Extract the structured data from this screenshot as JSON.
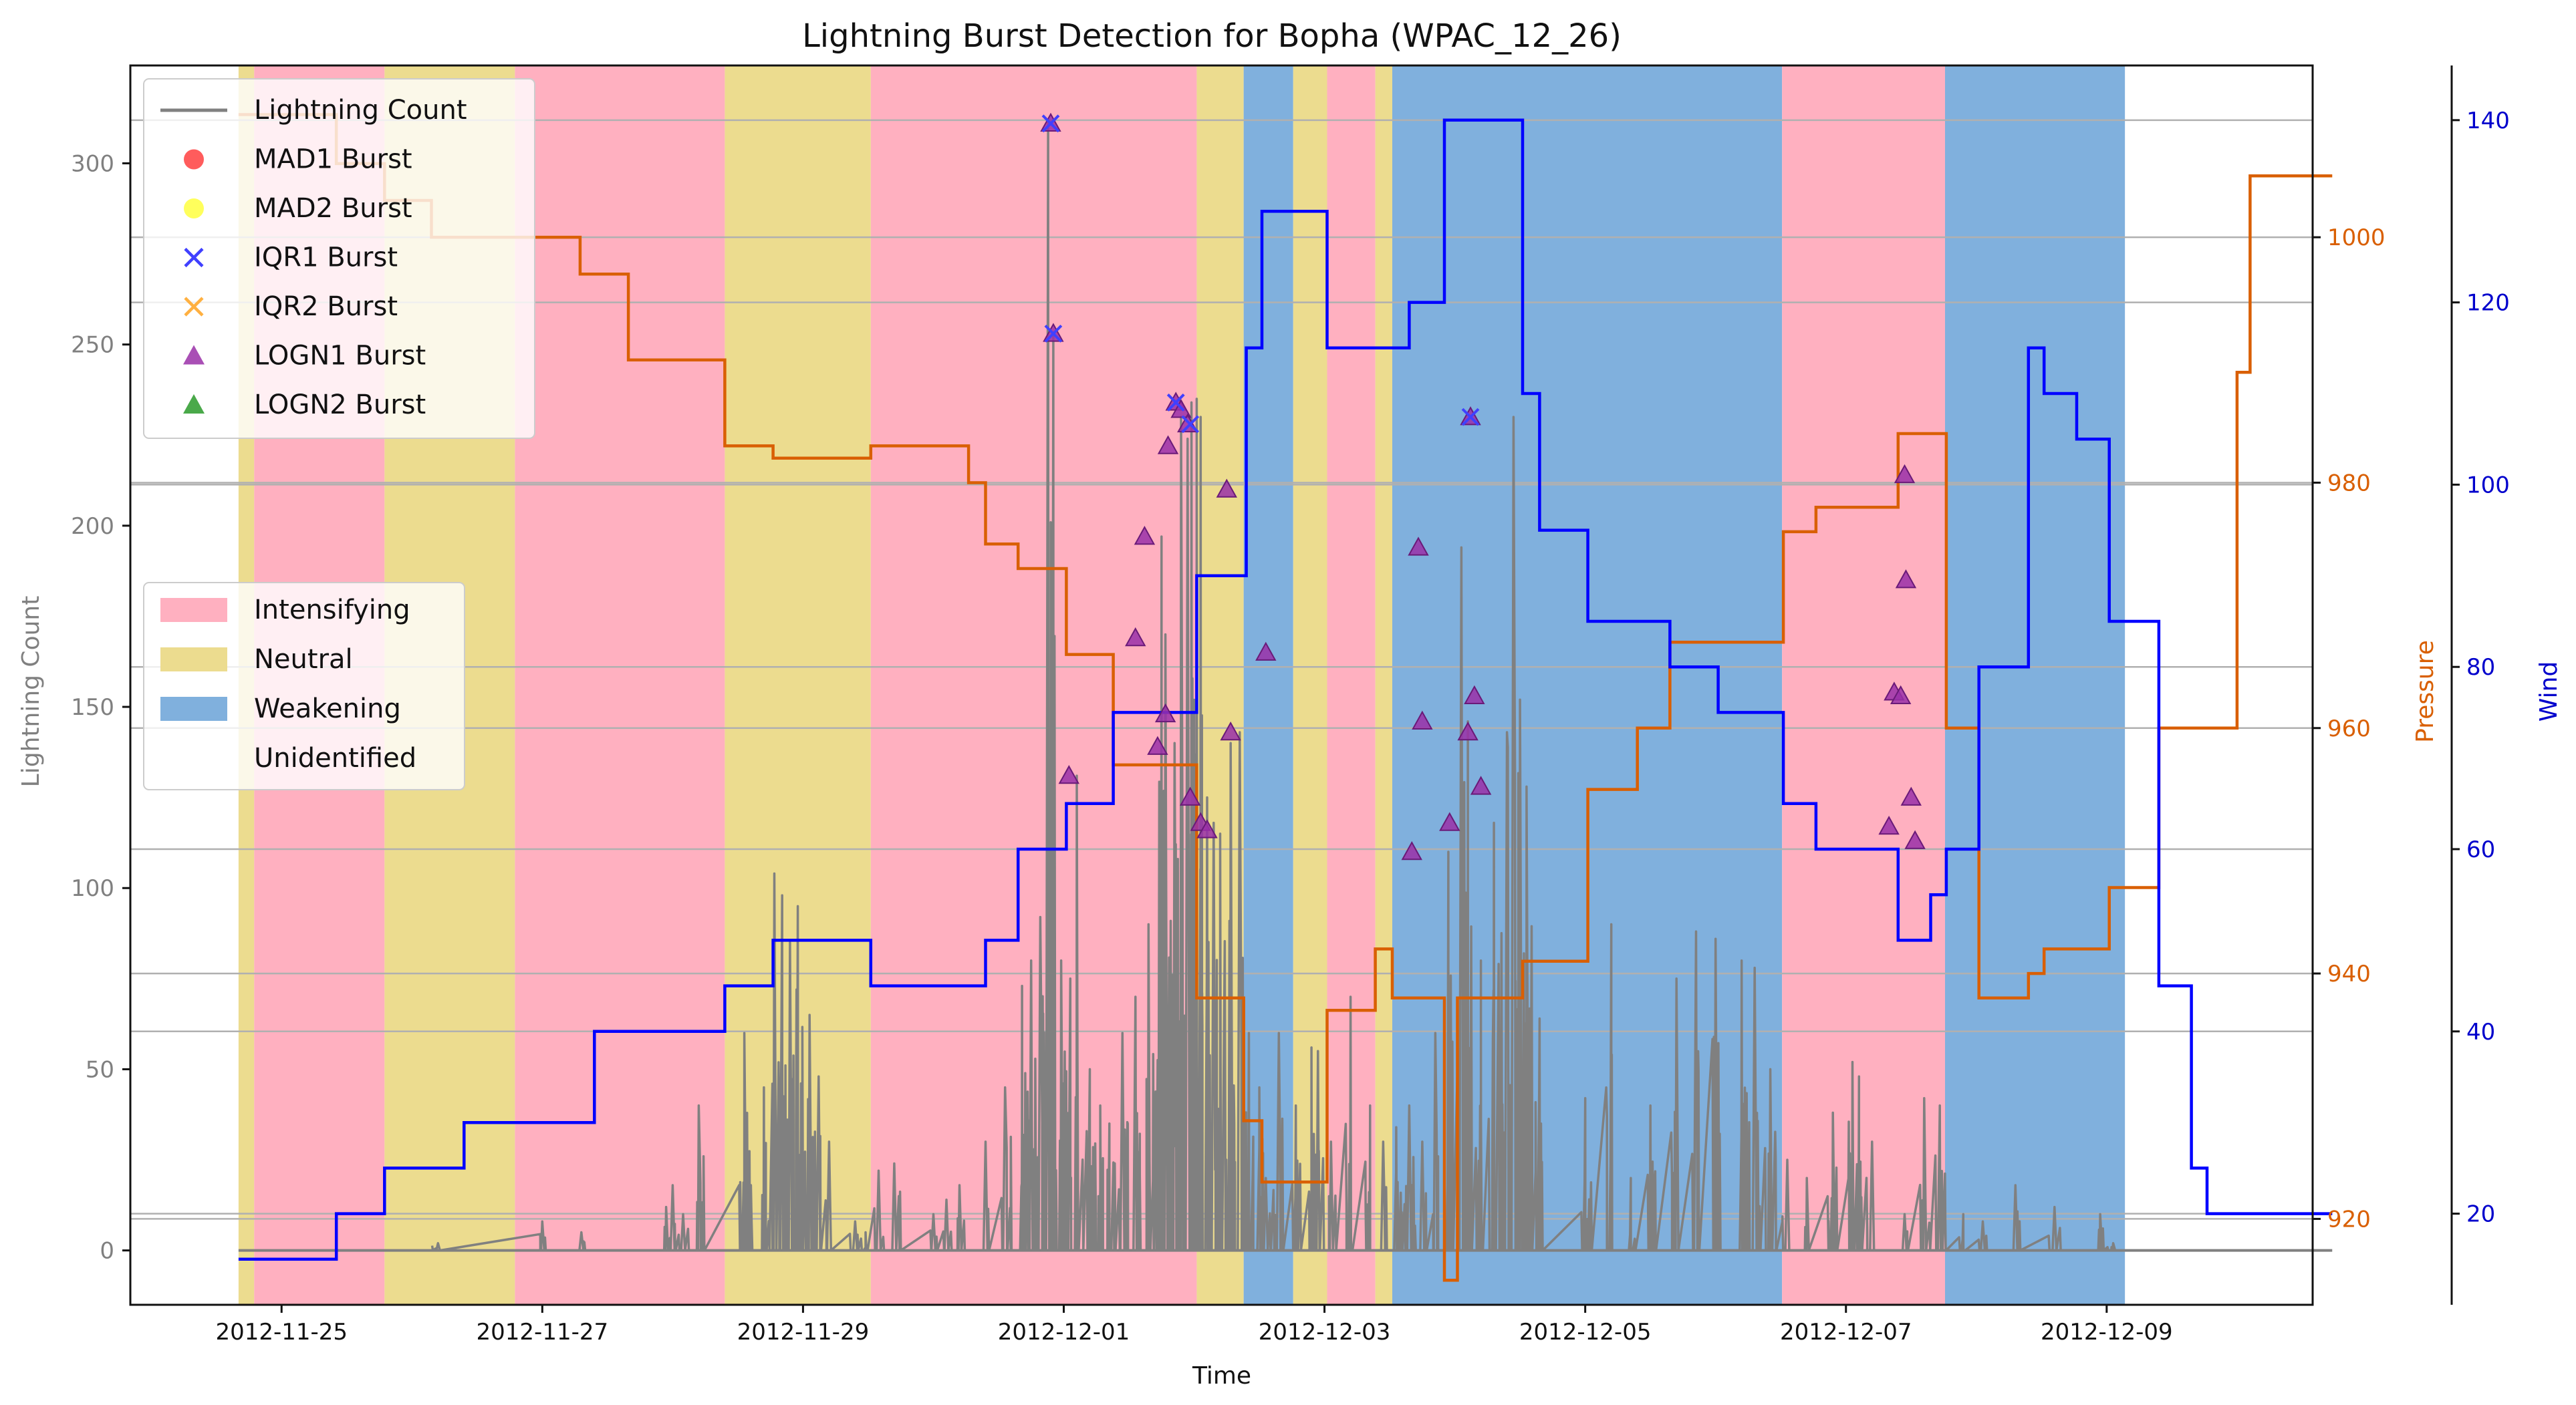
{
  "chart_data": {
    "type": "line",
    "title": "Lightning Burst Detection for Bopha (WPAC_12_26)",
    "xlabel": "Time",
    "ylabel_left": "Lightning Count",
    "ylabel_pressure": "Pressure",
    "ylabel_wind": "Wind",
    "x_ticks": [
      "2012-11-25",
      "2012-11-27",
      "2012-11-29",
      "2012-12-01",
      "2012-12-03",
      "2012-12-05",
      "2012-12-07",
      "2012-12-09"
    ],
    "xlim_days": [
      -1.16,
      15.58
    ],
    "left_axis": {
      "ylim": [
        -15,
        327
      ],
      "ticks": [
        "0",
        "50",
        "100",
        "150",
        "200",
        "250",
        "300"
      ],
      "tick_values": [
        0,
        50,
        100,
        150,
        200,
        250,
        300
      ]
    },
    "pressure_axis": {
      "ylim": [
        913,
        1014
      ],
      "ticks": [
        "920",
        "940",
        "960",
        "980",
        "1000"
      ],
      "tick_values": [
        920,
        940,
        960,
        980,
        1000
      ]
    },
    "wind_axis": {
      "ylim": [
        10,
        146
      ],
      "ticks": [
        "20",
        "40",
        "60",
        "80",
        "100",
        "120",
        "140"
      ],
      "tick_values": [
        20,
        40,
        60,
        80,
        100,
        120,
        140
      ]
    },
    "grid": "horizontal",
    "colors": {
      "lightning": "#808080",
      "pressure": "#d95f02",
      "wind": "#0000ff",
      "intensifying": "#ffb0c0",
      "neutral": "#ecdc8f",
      "weakening": "#80b0dd",
      "mad1": "#ff4040",
      "mad2": "#ffff40",
      "iqr1": "#4040ff",
      "iqr2": "#ffb040",
      "logn1": "#9a30a8",
      "logn2": "#2a9a2a"
    },
    "legend_series": [
      {
        "label": "Lightning Count",
        "marker": "line",
        "color": "#808080"
      },
      {
        "label": "MAD1 Burst",
        "marker": "circle",
        "color": "#ff4040"
      },
      {
        "label": "MAD2 Burst",
        "marker": "circle",
        "color": "#ffff40"
      },
      {
        "label": "IQR1 Burst",
        "marker": "x",
        "color": "#4040ff"
      },
      {
        "label": "IQR2 Burst",
        "marker": "x",
        "color": "#ffb040"
      },
      {
        "label": "LOGN1 Burst",
        "marker": "triangle",
        "color": "#9a30a8"
      },
      {
        "label": "LOGN2 Burst",
        "marker": "triangle",
        "color": "#2a9a2a"
      }
    ],
    "legend_phases": [
      {
        "label": "Intensifying",
        "color": "#ffb0c0"
      },
      {
        "label": "Neutral",
        "color": "#ecdc8f"
      },
      {
        "label": "Weakening",
        "color": "#80b0dd"
      },
      {
        "label": "Unidentified",
        "color": "#ffffff"
      }
    ],
    "phases": [
      {
        "start": -0.33,
        "end": -0.21,
        "phase": "Neutral"
      },
      {
        "start": -0.21,
        "end": 0.79,
        "phase": "Intensifying"
      },
      {
        "start": 0.79,
        "end": 1.79,
        "phase": "Neutral"
      },
      {
        "start": 1.79,
        "end": 3.4,
        "phase": "Intensifying"
      },
      {
        "start": 3.4,
        "end": 4.52,
        "phase": "Neutral"
      },
      {
        "start": 4.52,
        "end": 7.02,
        "phase": "Intensifying"
      },
      {
        "start": 7.02,
        "end": 7.38,
        "phase": "Neutral"
      },
      {
        "start": 7.38,
        "end": 7.76,
        "phase": "Weakening"
      },
      {
        "start": 7.76,
        "end": 8.02,
        "phase": "Neutral"
      },
      {
        "start": 8.02,
        "end": 8.39,
        "phase": "Intensifying"
      },
      {
        "start": 8.39,
        "end": 8.52,
        "phase": "Neutral"
      },
      {
        "start": 8.52,
        "end": 11.51,
        "phase": "Weakening"
      },
      {
        "start": 11.51,
        "end": 12.76,
        "phase": "Intensifying"
      },
      {
        "start": 12.76,
        "end": 14.14,
        "phase": "Weakening"
      }
    ],
    "pressure": {
      "x": [
        -0.33,
        0.42,
        0.42,
        0.79,
        0.79,
        1.15,
        1.15,
        2.29,
        2.29,
        2.66,
        2.66,
        3.4,
        3.4,
        3.77,
        3.77,
        4.52,
        4.52,
        5.27,
        5.27,
        5.4,
        5.4,
        5.65,
        5.65,
        6.02,
        6.02,
        6.38,
        6.38,
        7.02,
        7.02,
        7.38,
        7.38,
        7.52,
        7.52,
        8.02,
        8.02,
        8.39,
        8.39,
        8.52,
        8.52,
        8.92,
        8.92,
        9.02,
        9.02,
        9.52,
        9.52,
        10.02,
        10.02,
        10.4,
        10.4,
        10.65,
        10.65,
        11.52,
        11.52,
        11.77,
        11.77,
        12.4,
        12.4,
        12.77,
        12.77,
        13.02,
        13.02,
        13.4,
        13.4,
        13.52,
        13.52,
        14.02,
        14.02,
        14.4,
        14.4,
        15.0,
        15.0,
        15.1,
        15.1,
        15.73
      ],
      "y": [
        1010,
        1010,
        1006,
        1006,
        1003,
        1003,
        1000,
        1000,
        997,
        997,
        990,
        990,
        983,
        983,
        982,
        982,
        983,
        983,
        980,
        980,
        975,
        975,
        973,
        973,
        966,
        966,
        957,
        957,
        938,
        938,
        928,
        928,
        923,
        923,
        937,
        937,
        942,
        942,
        938,
        938,
        915,
        915,
        938,
        938,
        941,
        941,
        955,
        955,
        960,
        960,
        967,
        967,
        976,
        976,
        978,
        978,
        984,
        984,
        960,
        960,
        938,
        938,
        940,
        940,
        942,
        942,
        947,
        947,
        960,
        960,
        989,
        989,
        1005,
        1005
      ],
      "visible_range": [
        -0.33,
        15.73
      ]
    },
    "wind": {
      "x": [
        -0.33,
        0.42,
        0.42,
        0.79,
        0.79,
        1.4,
        1.4,
        1.4,
        2.4,
        2.4,
        2.4,
        3.4,
        3.4,
        3.77,
        3.77,
        4.52,
        4.52,
        5.4,
        5.4,
        5.65,
        5.65,
        6.02,
        6.02,
        6.38,
        6.38,
        7.02,
        7.02,
        7.4,
        7.4,
        7.52,
        7.52,
        8.02,
        8.02,
        8.52,
        8.52,
        8.65,
        8.65,
        8.92,
        8.92,
        9.52,
        9.52,
        9.65,
        9.65,
        10.02,
        10.02,
        10.65,
        10.65,
        11.02,
        11.02,
        11.52,
        11.52,
        11.77,
        11.77,
        12.4,
        12.4,
        12.65,
        12.65,
        12.77,
        12.77,
        13.02,
        13.02,
        13.4,
        13.4,
        13.52,
        13.52,
        13.77,
        13.77,
        14.02,
        14.02,
        14.4,
        14.4,
        15.73
      ],
      "y": [
        15,
        15,
        20,
        20,
        25,
        25,
        30,
        30,
        30,
        35,
        40,
        40,
        45,
        45,
        50,
        50,
        45,
        45,
        50,
        50,
        60,
        60,
        65,
        65,
        75,
        75,
        90,
        90,
        115,
        115,
        130,
        130,
        115,
        115,
        115,
        115,
        120,
        120,
        140,
        140,
        110,
        110,
        95,
        95,
        85,
        85,
        80,
        80,
        75,
        75,
        65,
        65,
        60,
        60,
        50,
        50,
        55,
        55,
        60,
        60,
        80,
        80,
        115,
        115,
        110,
        110,
        105,
        105,
        85,
        85,
        45,
        45
      ],
      "tail": [
        [
          14.4,
          45
        ],
        [
          14.65,
          45
        ],
        [
          14.65,
          25
        ],
        [
          14.77,
          25
        ],
        [
          14.77,
          20
        ],
        [
          15.73,
          20
        ]
      ]
    },
    "lightning_spikes": [
      [
        1.2,
        2
      ],
      [
        2.0,
        8
      ],
      [
        2.3,
        5
      ],
      [
        2.95,
        12
      ],
      [
        3.2,
        40
      ],
      [
        3.55,
        60
      ],
      [
        3.78,
        104
      ],
      [
        3.84,
        98
      ],
      [
        3.9,
        85
      ],
      [
        3.96,
        95
      ],
      [
        4.05,
        65
      ],
      [
        4.12,
        48
      ],
      [
        4.2,
        30
      ],
      [
        4.4,
        8
      ],
      [
        3.6,
        18
      ],
      [
        3.7,
        45
      ],
      [
        3.95,
        72
      ],
      [
        4.48,
        5
      ],
      [
        4.58,
        22
      ],
      [
        4.7,
        24
      ],
      [
        3.0,
        18
      ],
      [
        3.08,
        10
      ],
      [
        5.0,
        10
      ],
      [
        5.1,
        14
      ],
      [
        5.2,
        18
      ],
      [
        5.4,
        30
      ],
      [
        5.55,
        45
      ],
      [
        5.68,
        73
      ],
      [
        5.75,
        80
      ],
      [
        5.82,
        92
      ],
      [
        5.88,
        312
      ],
      [
        5.92,
        253
      ],
      [
        5.98,
        80
      ],
      [
        6.05,
        75
      ],
      [
        6.1,
        131
      ],
      [
        6.2,
        50
      ],
      [
        6.28,
        40
      ],
      [
        6.35,
        35
      ],
      [
        6.45,
        60
      ],
      [
        6.55,
        70
      ],
      [
        6.65,
        90
      ],
      [
        6.75,
        197
      ],
      [
        6.78,
        170
      ],
      [
        6.85,
        140
      ],
      [
        6.9,
        230
      ],
      [
        6.95,
        224
      ],
      [
        6.98,
        234
      ],
      [
        7.02,
        235
      ],
      [
        7.05,
        230
      ],
      [
        7.1,
        125
      ],
      [
        7.15,
        118
      ],
      [
        7.2,
        115
      ],
      [
        7.28,
        140
      ],
      [
        7.35,
        143
      ],
      [
        7.42,
        60
      ],
      [
        7.5,
        45
      ],
      [
        7.55,
        20
      ],
      [
        7.65,
        60
      ],
      [
        7.78,
        40
      ],
      [
        7.9,
        56
      ],
      [
        7.95,
        55
      ],
      [
        8.05,
        30
      ],
      [
        8.2,
        70
      ],
      [
        8.35,
        40
      ],
      [
        8.45,
        30
      ],
      [
        8.55,
        34
      ],
      [
        8.65,
        40
      ],
      [
        8.75,
        30
      ],
      [
        8.85,
        60
      ],
      [
        8.95,
        110
      ],
      [
        9.05,
        194
      ],
      [
        9.1,
        146
      ],
      [
        9.2,
        80
      ],
      [
        9.3,
        118
      ],
      [
        9.4,
        143
      ],
      [
        9.45,
        230
      ],
      [
        9.5,
        152
      ],
      [
        9.55,
        128
      ],
      [
        9.65,
        64
      ],
      [
        10.0,
        42
      ],
      [
        10.2,
        90
      ],
      [
        10.35,
        20
      ],
      [
        10.5,
        40
      ],
      [
        10.7,
        75
      ],
      [
        10.85,
        88
      ],
      [
        11.0,
        86
      ],
      [
        11.2,
        80
      ],
      [
        11.3,
        78
      ],
      [
        11.42,
        50
      ],
      [
        11.55,
        25
      ],
      [
        11.7,
        20
      ],
      [
        11.9,
        38
      ],
      [
        12.05,
        52
      ],
      [
        12.1,
        48
      ],
      [
        12.2,
        30
      ],
      [
        12.45,
        10
      ],
      [
        12.6,
        42
      ],
      [
        12.72,
        40
      ],
      [
        12.9,
        10
      ],
      [
        13.05,
        8
      ],
      [
        13.3,
        18
      ],
      [
        13.6,
        12
      ],
      [
        13.95,
        10
      ],
      [
        14.05,
        2
      ]
    ],
    "logn1_bursts": [
      [
        5.9,
        311
      ],
      [
        5.92,
        253
      ],
      [
        6.04,
        131
      ],
      [
        6.55,
        169
      ],
      [
        6.62,
        197
      ],
      [
        6.72,
        139
      ],
      [
        6.78,
        148
      ],
      [
        6.8,
        222
      ],
      [
        6.86,
        234
      ],
      [
        6.9,
        232
      ],
      [
        6.95,
        228
      ],
      [
        6.97,
        125
      ],
      [
        7.05,
        118
      ],
      [
        7.1,
        116
      ],
      [
        7.25,
        210
      ],
      [
        7.28,
        143
      ],
      [
        7.55,
        165
      ],
      [
        8.67,
        110
      ],
      [
        8.72,
        194
      ],
      [
        8.75,
        146
      ],
      [
        8.96,
        118
      ],
      [
        9.1,
        143
      ],
      [
        9.12,
        230
      ],
      [
        9.15,
        153
      ],
      [
        9.2,
        128
      ],
      [
        12.33,
        117
      ],
      [
        12.37,
        154
      ],
      [
        12.42,
        153
      ],
      [
        12.45,
        214
      ],
      [
        12.46,
        185
      ],
      [
        12.5,
        125
      ],
      [
        12.53,
        113
      ]
    ],
    "iqr1_bursts": [
      [
        5.9,
        311
      ],
      [
        5.92,
        253
      ],
      [
        6.86,
        234
      ],
      [
        6.97,
        228
      ],
      [
        9.12,
        230
      ]
    ]
  }
}
